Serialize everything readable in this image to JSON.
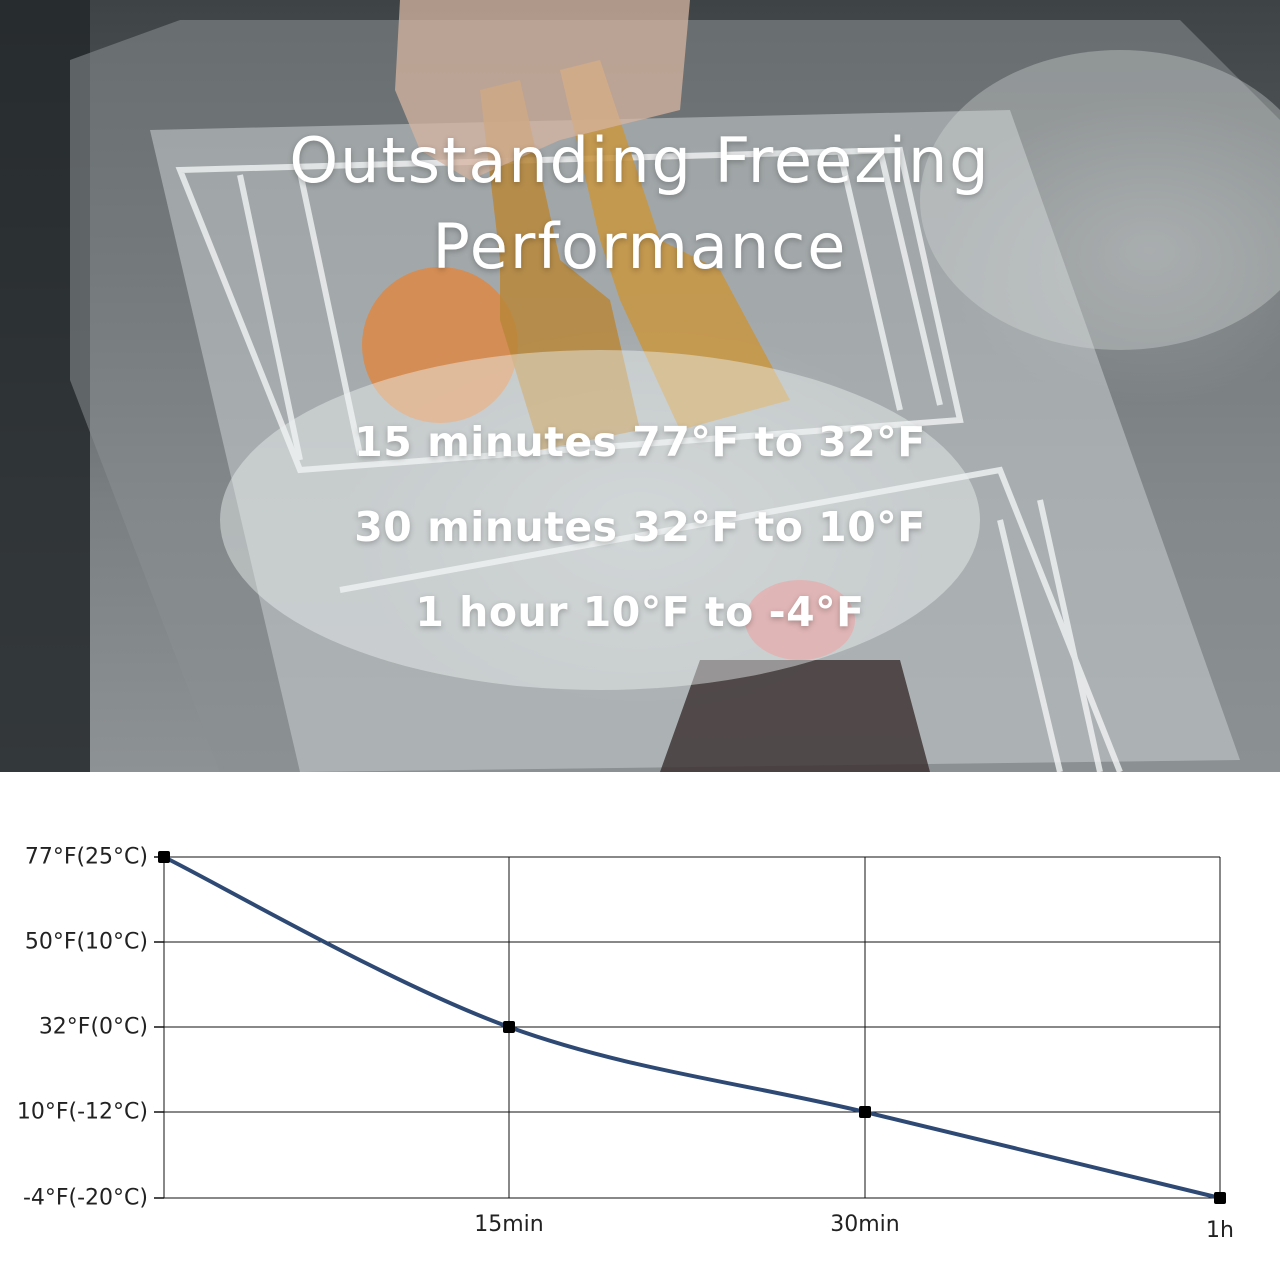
{
  "hero": {
    "title_line1": "Outstanding Freezing",
    "title_line2": "Performance",
    "lines": [
      "15 minutes 77°F to 32°F",
      "30 minutes 32°F to 10°F",
      "1 hour 10°F to -4°F"
    ]
  },
  "chart_data": {
    "type": "line",
    "title": "",
    "xlabel": "",
    "ylabel": "",
    "x_tick_labels": [
      "15min",
      "30min",
      "1h"
    ],
    "y_tick_labels": [
      "77°F(25°C)",
      "50°F(10°C)",
      "32°F(0°C)",
      "10°F(-12°C)",
      "-4°F(-20°C)"
    ],
    "series": [
      {
        "x": [
          "0",
          "15min",
          "30min",
          "1h"
        ],
        "values": [
          77,
          32,
          10,
          -4
        ],
        "color": "#2e4a74"
      }
    ],
    "grid": true
  }
}
